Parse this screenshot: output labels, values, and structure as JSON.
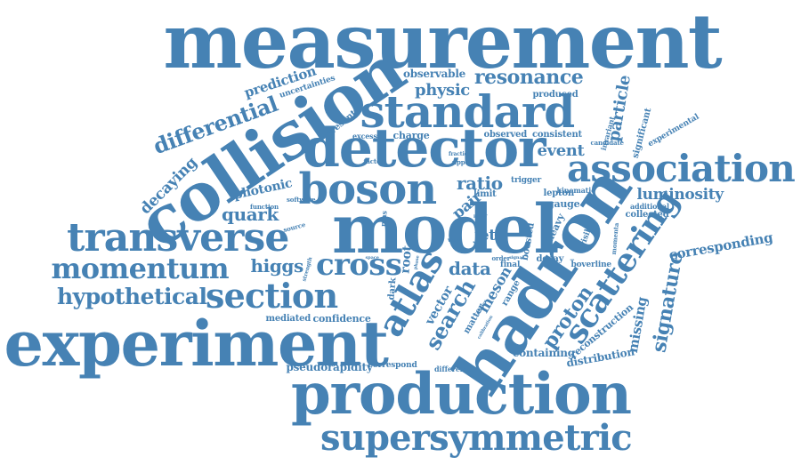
{
  "style": {
    "word_color": "#4682b4",
    "background": "#ffffff"
  },
  "words": {
    "measurement": "measurement",
    "collision": "collision",
    "model": "model",
    "hadron": "hadron",
    "production": "production",
    "experiment": "experiment",
    "detector": "detector",
    "boson": "boson",
    "standard": "standard",
    "association": "association",
    "transverse": "transverse",
    "momentum": "momentum",
    "section": "section",
    "cross": "cross",
    "scattering": "scattering",
    "supersymmetric": "supersymmetric",
    "atlas": "atlas",
    "hypothetical": "hypothetical",
    "differential": "differential",
    "search": "search",
    "proton": "proton",
    "resonance": "resonance",
    "signature": "signature",
    "quark": "quark",
    "higgs": "higgs",
    "data": "data",
    "ratio": "ratio",
    "event": "event",
    "luminosity": "luminosity",
    "physic": "physic",
    "particle": "particle",
    "decaying": "decaying",
    "prediction": "prediction",
    "missing": "missing",
    "corresponding": "corresponding",
    "photonic": "photonic",
    "pair": "pair",
    "jet": "jet",
    "meson": "meson",
    "vector": "vector",
    "reconstruction": "reconstruction",
    "distribution": "distribution",
    "containing": "containing",
    "pseudorapidity": "pseudorapidity",
    "confidence": "confidence",
    "mediated": "mediated",
    "observable": "observable",
    "uncertainties": "uncertainties",
    "present": "present",
    "charge": "charge",
    "observed": "observed",
    "consistent": "consistent",
    "produced": "produced",
    "significant": "significant",
    "invariant": "invariant",
    "experimental": "experimental",
    "heavy": "heavy",
    "gauge": "gauge",
    "lepton": "lepton",
    "collected": "collected",
    "additional": "additional",
    "kinematic": "kinematic",
    "trigger": "trigger",
    "limit": "limit",
    "boosted": "boosted",
    "decay": "decay",
    "final": "final",
    "root": "root",
    "dark": "dark",
    "matter": "matter",
    "range": "range",
    "correspond": "correspond",
    "difference": "difference",
    "bbar": "b̅overline",
    "visible": "visible",
    "momenta": "momenta",
    "candidate": "candidate",
    "excess": "excess",
    "factor": "factor",
    "upper": "upper",
    "fraction": "fraction",
    "software": "software",
    "function": "function",
    "source": "source",
    "mas": "mas",
    "strength": "strength",
    "order": "order",
    "signal": "signal",
    "view": "view",
    "paper": "paper",
    "collider": "collider",
    "calibration": "calibration",
    "space": "space",
    "phase": "phase"
  }
}
